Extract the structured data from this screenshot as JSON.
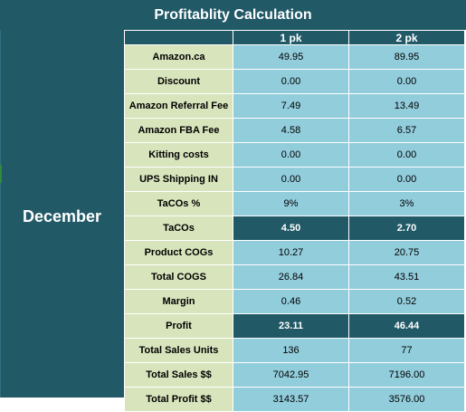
{
  "title": "Profitablity Calculation",
  "month": "December",
  "columns": [
    "1 pk",
    "2 pk"
  ],
  "rows": [
    {
      "label": "Amazon.ca",
      "a": "49.95",
      "b": "89.95",
      "highlight": false
    },
    {
      "label": "Discount",
      "a": "0.00",
      "b": "0.00",
      "highlight": false
    },
    {
      "label": "Amazon Referral Fee",
      "a": "7.49",
      "b": "13.49",
      "highlight": false
    },
    {
      "label": "Amazon FBA Fee",
      "a": "4.58",
      "b": "6.57",
      "highlight": false
    },
    {
      "label": "Kitting costs",
      "a": "0.00",
      "b": "0.00",
      "highlight": false
    },
    {
      "label": "UPS Shipping IN",
      "a": "0.00",
      "b": "0.00",
      "highlight": false
    },
    {
      "label": "TaCOs %",
      "a": "9%",
      "b": "3%",
      "highlight": false
    },
    {
      "label": "TaCOs",
      "a": "4.50",
      "b": "2.70",
      "highlight": true
    },
    {
      "label": "Product COGs",
      "a": "10.27",
      "b": "20.75",
      "highlight": false
    },
    {
      "label": "Total COGS",
      "a": "26.84",
      "b": "43.51",
      "highlight": false
    },
    {
      "label": "Margin",
      "a": "0.46",
      "b": "0.52",
      "highlight": false
    },
    {
      "label": "Profit",
      "a": "23.11",
      "b": "46.44",
      "highlight": true
    },
    {
      "label": "Total Sales Units",
      "a": "136",
      "b": "77",
      "highlight": false
    },
    {
      "label": "Total Sales $$",
      "a": "7042.95",
      "b": "7196.00",
      "highlight": false
    },
    {
      "label": "Total Profit $$",
      "a": "3143.57",
      "b": "3576.00",
      "highlight": false
    }
  ],
  "colors": {
    "header": "#215967",
    "label_cell": "#d8e4bc",
    "value_cell": "#92cddc"
  }
}
